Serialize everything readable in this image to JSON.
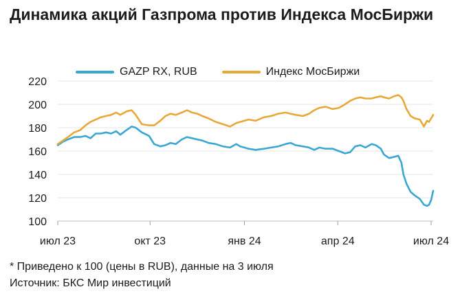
{
  "title": "Динамика акций Газпрома против Индекса МосБиржи",
  "footnote": "* Приведено к 100 (цены в RUB), данные на 3 июля",
  "source": "Источник: БКС Мир инвестиций",
  "chart_data": {
    "type": "line",
    "xlabel": "",
    "ylabel": "",
    "ylim": [
      100,
      220
    ],
    "yticks": [
      100,
      120,
      140,
      160,
      180,
      200,
      220
    ],
    "grid": "horizontal",
    "legend_position": "top",
    "x_domain": [
      "2023-07-03",
      "2024-07-03"
    ],
    "x_ticks": [
      {
        "date": "2023-07-01",
        "label": "июл 23"
      },
      {
        "date": "2023-10-01",
        "label": "окт 23"
      },
      {
        "date": "2024-01-01",
        "label": "янв 24"
      },
      {
        "date": "2024-04-01",
        "label": "апр 24"
      },
      {
        "date": "2024-07-01",
        "label": "июл 24"
      }
    ],
    "series": [
      {
        "name": "GAZP RX, RUB",
        "color": "#3aa6d3",
        "points": [
          [
            "2023-07-03",
            165
          ],
          [
            "2023-07-08",
            168
          ],
          [
            "2023-07-13",
            170
          ],
          [
            "2023-07-19",
            172
          ],
          [
            "2023-07-25",
            172
          ],
          [
            "2023-07-30",
            173
          ],
          [
            "2023-08-04",
            171
          ],
          [
            "2023-08-09",
            175
          ],
          [
            "2023-08-14",
            175
          ],
          [
            "2023-08-19",
            176
          ],
          [
            "2023-08-24",
            175
          ],
          [
            "2023-08-29",
            177
          ],
          [
            "2023-09-02",
            174
          ],
          [
            "2023-09-08",
            178
          ],
          [
            "2023-09-13",
            181
          ],
          [
            "2023-09-17",
            180
          ],
          [
            "2023-09-23",
            176
          ],
          [
            "2023-09-30",
            173
          ],
          [
            "2023-10-05",
            166
          ],
          [
            "2023-10-11",
            164
          ],
          [
            "2023-10-16",
            165
          ],
          [
            "2023-10-21",
            167
          ],
          [
            "2023-10-26",
            166
          ],
          [
            "2023-11-01",
            170
          ],
          [
            "2023-11-06",
            172
          ],
          [
            "2023-11-11",
            171
          ],
          [
            "2023-11-16",
            170
          ],
          [
            "2023-11-21",
            169
          ],
          [
            "2023-11-27",
            167
          ],
          [
            "2023-12-04",
            166
          ],
          [
            "2023-12-11",
            164
          ],
          [
            "2023-12-18",
            163
          ],
          [
            "2023-12-24",
            166
          ],
          [
            "2023-12-28",
            164
          ],
          [
            "2024-01-05",
            162
          ],
          [
            "2024-01-12",
            161
          ],
          [
            "2024-01-20",
            162
          ],
          [
            "2024-01-27",
            163
          ],
          [
            "2024-02-03",
            164
          ],
          [
            "2024-02-10",
            166
          ],
          [
            "2024-02-15",
            167
          ],
          [
            "2024-02-20",
            165
          ],
          [
            "2024-02-27",
            164
          ],
          [
            "2024-03-04",
            163
          ],
          [
            "2024-03-09",
            161
          ],
          [
            "2024-03-14",
            163
          ],
          [
            "2024-03-20",
            162
          ],
          [
            "2024-03-27",
            162
          ],
          [
            "2024-04-02",
            160
          ],
          [
            "2024-04-08",
            158
          ],
          [
            "2024-04-13",
            159
          ],
          [
            "2024-04-18",
            164
          ],
          [
            "2024-04-23",
            165
          ],
          [
            "2024-04-28",
            163
          ],
          [
            "2024-05-04",
            166
          ],
          [
            "2024-05-08",
            165
          ],
          [
            "2024-05-13",
            162
          ],
          [
            "2024-05-16",
            157
          ],
          [
            "2024-05-21",
            154
          ],
          [
            "2024-05-26",
            155
          ],
          [
            "2024-05-30",
            156
          ],
          [
            "2024-06-02",
            150
          ],
          [
            "2024-06-04",
            140
          ],
          [
            "2024-06-07",
            132
          ],
          [
            "2024-06-11",
            125
          ],
          [
            "2024-06-15",
            122
          ],
          [
            "2024-06-20",
            119
          ],
          [
            "2024-06-24",
            114
          ],
          [
            "2024-06-27",
            113
          ],
          [
            "2024-06-29",
            114
          ],
          [
            "2024-07-01",
            118
          ],
          [
            "2024-07-03",
            126
          ]
        ]
      },
      {
        "name": "Индекс МосБиржи",
        "color": "#e8a838",
        "points": [
          [
            "2023-07-03",
            166
          ],
          [
            "2023-07-08",
            169
          ],
          [
            "2023-07-13",
            172
          ],
          [
            "2023-07-19",
            176
          ],
          [
            "2023-07-25",
            178
          ],
          [
            "2023-07-30",
            182
          ],
          [
            "2023-08-04",
            185
          ],
          [
            "2023-08-09",
            187
          ],
          [
            "2023-08-14",
            189
          ],
          [
            "2023-08-19",
            190
          ],
          [
            "2023-08-24",
            191
          ],
          [
            "2023-08-29",
            193
          ],
          [
            "2023-09-02",
            191
          ],
          [
            "2023-09-08",
            194
          ],
          [
            "2023-09-13",
            195
          ],
          [
            "2023-09-17",
            191
          ],
          [
            "2023-09-23",
            183
          ],
          [
            "2023-09-30",
            182
          ],
          [
            "2023-10-05",
            182
          ],
          [
            "2023-10-11",
            186
          ],
          [
            "2023-10-16",
            190
          ],
          [
            "2023-10-21",
            192
          ],
          [
            "2023-10-26",
            191
          ],
          [
            "2023-11-01",
            193
          ],
          [
            "2023-11-06",
            195
          ],
          [
            "2023-11-11",
            193
          ],
          [
            "2023-11-16",
            192
          ],
          [
            "2023-11-21",
            190
          ],
          [
            "2023-11-27",
            188
          ],
          [
            "2023-12-04",
            185
          ],
          [
            "2023-12-11",
            183
          ],
          [
            "2023-12-18",
            181
          ],
          [
            "2023-12-24",
            184
          ],
          [
            "2023-12-28",
            185
          ],
          [
            "2024-01-05",
            187
          ],
          [
            "2024-01-12",
            186
          ],
          [
            "2024-01-20",
            189
          ],
          [
            "2024-01-27",
            190
          ],
          [
            "2024-02-03",
            192
          ],
          [
            "2024-02-10",
            193
          ],
          [
            "2024-02-15",
            192
          ],
          [
            "2024-02-20",
            191
          ],
          [
            "2024-02-27",
            190
          ],
          [
            "2024-03-04",
            192
          ],
          [
            "2024-03-09",
            195
          ],
          [
            "2024-03-14",
            197
          ],
          [
            "2024-03-20",
            198
          ],
          [
            "2024-03-27",
            196
          ],
          [
            "2024-04-02",
            197
          ],
          [
            "2024-04-08",
            200
          ],
          [
            "2024-04-13",
            203
          ],
          [
            "2024-04-18",
            205
          ],
          [
            "2024-04-23",
            206
          ],
          [
            "2024-04-28",
            205
          ],
          [
            "2024-05-04",
            205
          ],
          [
            "2024-05-08",
            206
          ],
          [
            "2024-05-13",
            207
          ],
          [
            "2024-05-16",
            206
          ],
          [
            "2024-05-21",
            205
          ],
          [
            "2024-05-26",
            207
          ],
          [
            "2024-05-30",
            208
          ],
          [
            "2024-06-02",
            206
          ],
          [
            "2024-06-04",
            203
          ],
          [
            "2024-06-07",
            196
          ],
          [
            "2024-06-11",
            190
          ],
          [
            "2024-06-15",
            188
          ],
          [
            "2024-06-20",
            187
          ],
          [
            "2024-06-24",
            181
          ],
          [
            "2024-06-27",
            186
          ],
          [
            "2024-06-29",
            185
          ],
          [
            "2024-07-01",
            188
          ],
          [
            "2024-07-03",
            191
          ]
        ]
      }
    ]
  }
}
